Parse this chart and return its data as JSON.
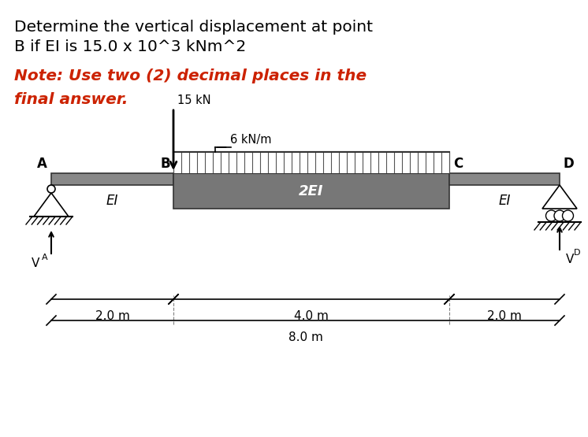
{
  "title_line1": "Determine the vertical displacement at point",
  "title_line2": "B if EI is 15.0 x 10^3 kNm^2",
  "note_line1": "Note: Use two (2) decimal places in the",
  "note_line2": "final answer.",
  "title_color": "#000000",
  "note_color": "#cc2200",
  "bg_color": "#ffffff",
  "label_15kN": "15 kN",
  "label_6kNm": "6 kN/m",
  "label_2EI": "2EI",
  "label_EI_left": "EI",
  "label_EI_right": "EI",
  "label_VA": "V",
  "label_VD": "V",
  "label_A": "A",
  "label_B": "B",
  "label_C": "C",
  "label_D": "D",
  "label_2m_left": "2.0 m",
  "label_4m": "4.0 m",
  "label_2m_right": "2.0 m",
  "label_8m": "8.0 m",
  "beam_color": "#888888",
  "beam_2EI_color": "#777777",
  "title_fontsize": 14.5,
  "note_fontsize": 14.5
}
